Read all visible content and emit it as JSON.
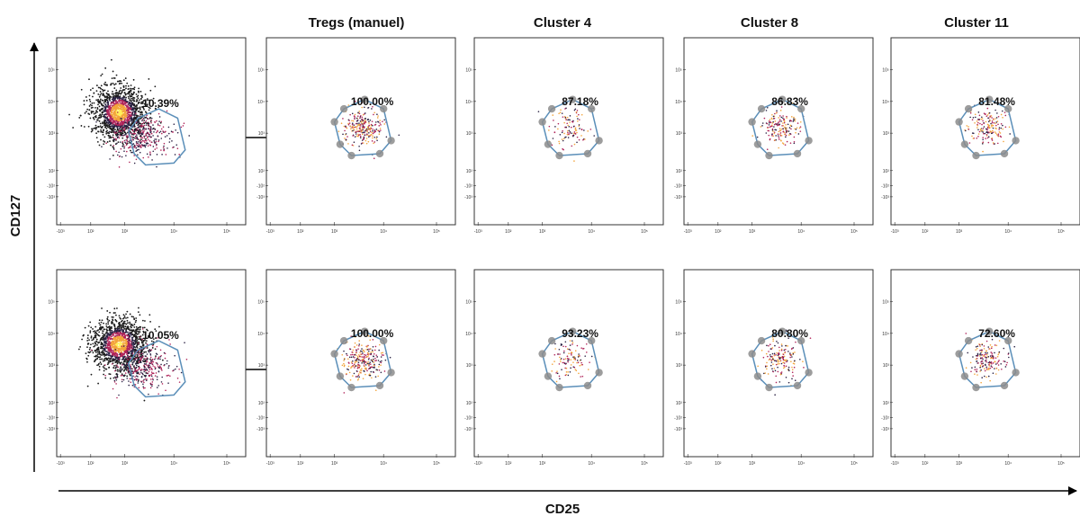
{
  "colors": {
    "gate": "#5b8fb9",
    "vertex": "#8c8c8c",
    "dens_low": "#2b2244",
    "dens_mid": "#b0245a",
    "dens_high": "#f3a43b",
    "dens_core": "#fff15a",
    "sparse_dark": "#1a1a1a"
  },
  "chart_data": {
    "type": "scatter",
    "xlabel": "CD25",
    "ylabel": "CD127",
    "columns": [
      "",
      "Tregs (manuel)",
      "Cluster 4",
      "Cluster 8",
      "Cluster 11"
    ],
    "x_ticks": [
      "-10³",
      "10²",
      "10³",
      "10⁴",
      "10⁵"
    ],
    "y_ticks": [
      "10⁵",
      "10⁴",
      "10³",
      "10²",
      "-10²",
      "-10³"
    ],
    "xlim": [
      "-10³",
      "10⁵"
    ],
    "ylim": [
      "-10³",
      "10⁵"
    ],
    "rows": [
      {
        "panels": [
          {
            "column": "",
            "percent": "10.39%"
          },
          {
            "column": "Tregs (manuel)",
            "percent": "100.00%"
          },
          {
            "column": "Cluster 4",
            "percent": "87.18%"
          },
          {
            "column": "Cluster 8",
            "percent": "86.83%"
          },
          {
            "column": "Cluster 11",
            "percent": "81.48%"
          }
        ]
      },
      {
        "panels": [
          {
            "column": "",
            "percent": "10.05%"
          },
          {
            "column": "Tregs (manuel)",
            "percent": "100.00%"
          },
          {
            "column": "Cluster 4",
            "percent": "93.23%"
          },
          {
            "column": "Cluster 8",
            "percent": "80.80%"
          },
          {
            "column": "Cluster 11",
            "percent": "72.60%"
          }
        ]
      }
    ]
  }
}
